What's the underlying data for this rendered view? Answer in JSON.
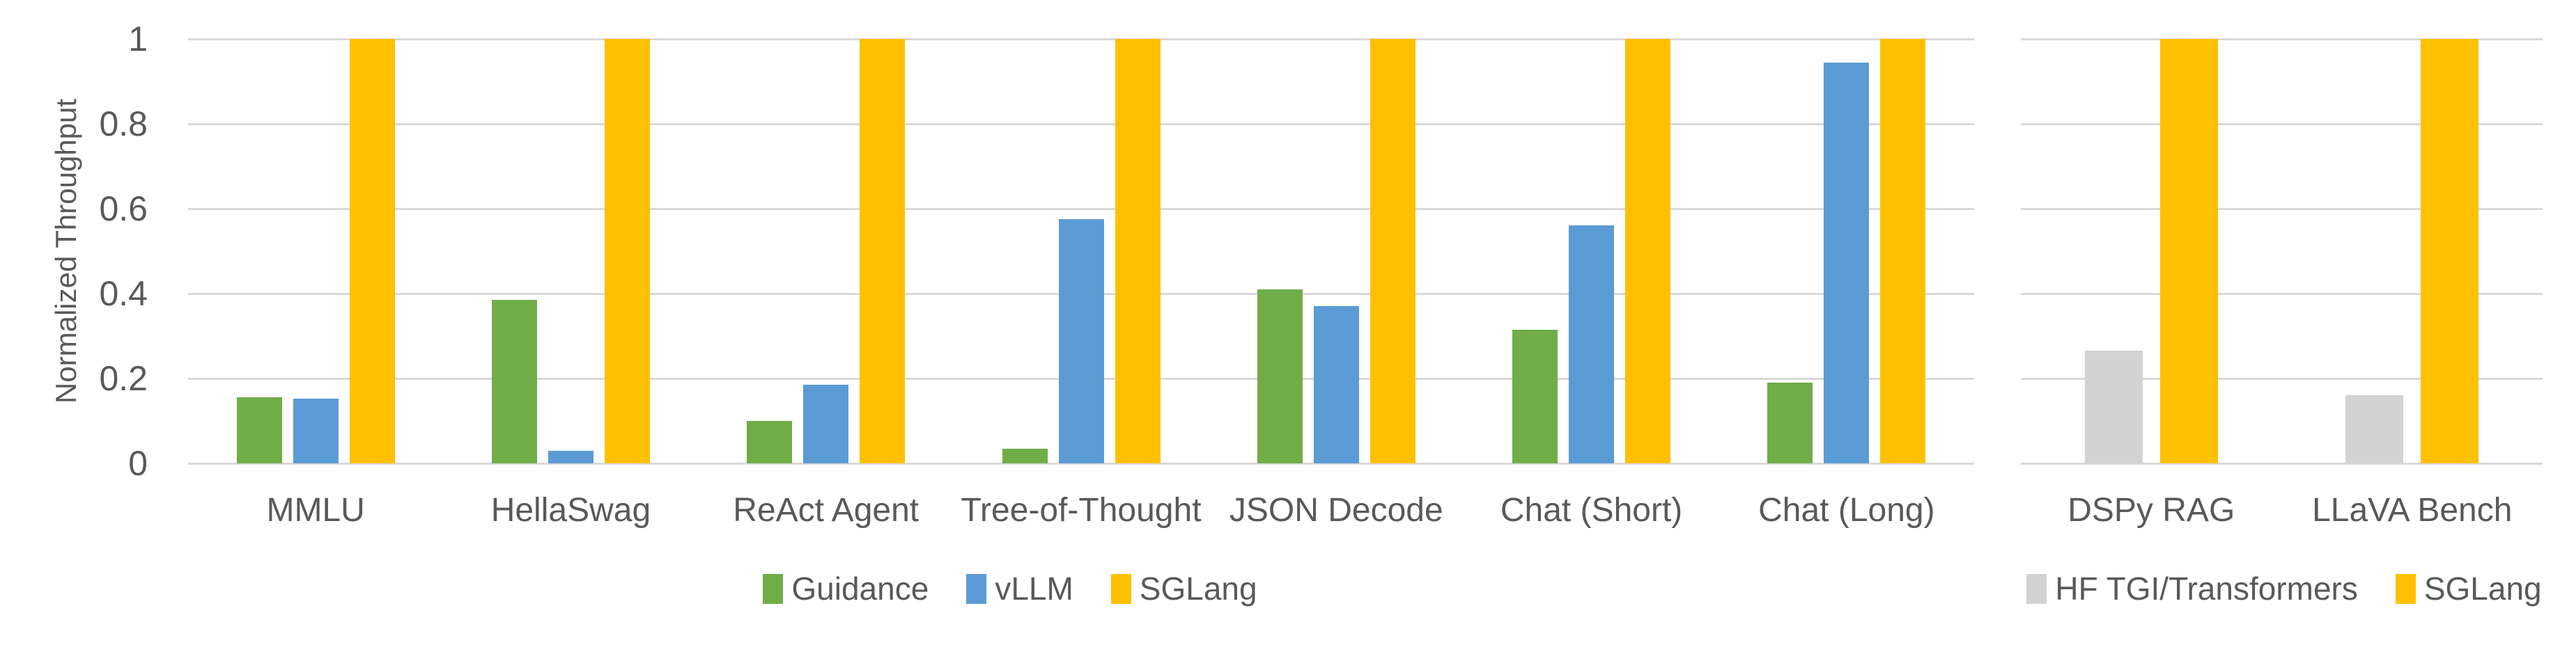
{
  "styles": {
    "background": "#FFFFFF",
    "text_color": "#595959",
    "gridline_color": "#D9D9D9"
  },
  "chart_data": [
    {
      "type": "bar",
      "title": "",
      "xlabel": "",
      "ylabel": "Normalized Throughput",
      "ylim": [
        0,
        1
      ],
      "yticks": [
        0,
        0.2,
        0.4,
        0.6,
        0.8,
        1
      ],
      "ytick_labels": [
        "0",
        "0.2",
        "0.4",
        "0.6",
        "0.8",
        "1"
      ],
      "grid": true,
      "legend_position": "bottom",
      "categories": [
        "MMLU",
        "HellaSwag",
        "ReAct Agent",
        "Tree-of-Thought",
        "JSON Decode",
        "Chat (Short)",
        "Chat (Long)"
      ],
      "series": [
        {
          "name": "Guidance",
          "color": "#70AD47",
          "values": [
            0.155,
            0.385,
            0.1,
            0.035,
            0.41,
            0.315,
            0.19
          ]
        },
        {
          "name": "vLLM",
          "color": "#5B9BD5",
          "values": [
            0.152,
            0.03,
            0.185,
            0.575,
            0.37,
            0.56,
            0.945
          ]
        },
        {
          "name": "SGLang",
          "color": "#FFC000",
          "values": [
            1,
            1,
            1,
            1,
            1,
            1,
            1
          ]
        }
      ]
    },
    {
      "type": "bar",
      "title": "",
      "xlabel": "",
      "ylabel": "",
      "ylim": [
        0,
        1
      ],
      "yticks": [
        0,
        0.2,
        0.4,
        0.6,
        0.8,
        1
      ],
      "ytick_labels": [],
      "grid": true,
      "legend_position": "bottom",
      "categories": [
        "DSPy RAG",
        "LLaVA Bench"
      ],
      "series": [
        {
          "name": "HF TGI/Transformers",
          "color": "#D2D2D2",
          "values": [
            0.265,
            0.16
          ]
        },
        {
          "name": "SGLang",
          "color": "#FFC000",
          "values": [
            1,
            1
          ]
        }
      ]
    }
  ]
}
